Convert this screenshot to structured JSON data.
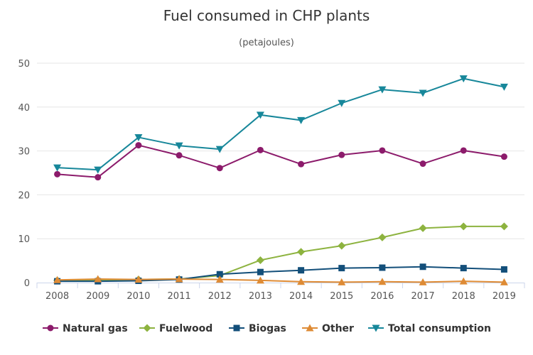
{
  "chart_data": {
    "type": "line",
    "title": "Fuel consumed in CHP plants",
    "subtitle": "(petajoules)",
    "xlabel": "",
    "ylabel": "",
    "categories": [
      "2008",
      "2009",
      "2010",
      "2011",
      "2012",
      "2013",
      "2014",
      "2015",
      "2016",
      "2017",
      "2018",
      "2019"
    ],
    "ylim": [
      0,
      50
    ],
    "yticks": [
      0,
      10,
      20,
      30,
      40,
      50
    ],
    "grid": true,
    "legend_position": "bottom",
    "series": [
      {
        "name": "Natural gas",
        "color": "#8c1b6b",
        "marker": "circle",
        "values": [
          24.7,
          24.0,
          31.3,
          29.0,
          26.1,
          30.2,
          27.0,
          29.1,
          30.1,
          27.1,
          30.1,
          28.7
        ]
      },
      {
        "name": "Fuelwood",
        "color": "#8db33f",
        "marker": "diamond",
        "values": [
          0.5,
          0.6,
          0.7,
          0.8,
          1.6,
          5.1,
          7.0,
          8.4,
          10.3,
          12.4,
          12.8,
          12.8
        ]
      },
      {
        "name": "Biogas",
        "color": "#134f7a",
        "marker": "square",
        "values": [
          0.3,
          0.3,
          0.4,
          0.7,
          1.9,
          2.4,
          2.8,
          3.3,
          3.4,
          3.6,
          3.3,
          3.0
        ]
      },
      {
        "name": "Other",
        "color": "#de8b35",
        "marker": "triangle",
        "values": [
          0.6,
          0.8,
          0.7,
          0.8,
          0.7,
          0.5,
          0.2,
          0.1,
          0.2,
          0.1,
          0.3,
          0.1
        ]
      },
      {
        "name": "Total consumption",
        "color": "#17879a",
        "marker": "triangle-down",
        "values": [
          26.2,
          25.7,
          33.1,
          31.2,
          30.4,
          38.2,
          37.0,
          40.9,
          44.0,
          43.2,
          46.5,
          44.6
        ]
      }
    ]
  }
}
